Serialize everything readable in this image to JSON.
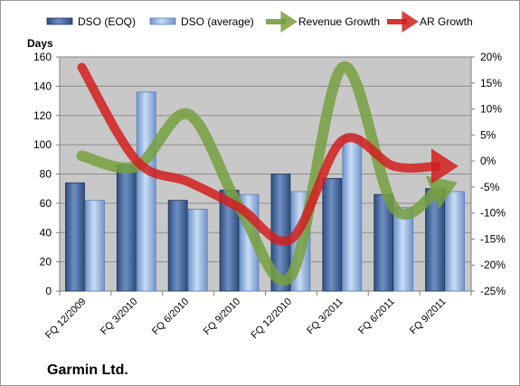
{
  "chart_data": {
    "type": "bar",
    "categories": [
      "FQ 12/2009",
      "FQ 3/2010",
      "FQ 6/2010",
      "FQ 9/2010",
      "FQ 12/2010",
      "FQ 3/2011",
      "FQ 6/2011",
      "FQ 9/2011"
    ],
    "series": [
      {
        "name": "DSO (EOQ)",
        "type": "bar",
        "axis": "left",
        "values": [
          74,
          86,
          62,
          69,
          80,
          77,
          66,
          70
        ],
        "color": "#3b5a8c"
      },
      {
        "name": "DSO (average)",
        "type": "bar",
        "axis": "left",
        "values": [
          62,
          136,
          56,
          66,
          68,
          106,
          57,
          68
        ],
        "color": "#8eb3e3"
      },
      {
        "name": "Revenue Growth",
        "type": "line",
        "axis": "right",
        "unit": "%",
        "values": [
          1,
          -1,
          9,
          -9,
          -22,
          18,
          -9,
          -5
        ],
        "color": "#77a03f"
      },
      {
        "name": "AR Growth",
        "type": "line",
        "axis": "right",
        "unit": "%",
        "values": [
          18,
          0,
          -4,
          -9,
          -15,
          4,
          -1,
          -1
        ],
        "color": "#d21e1e"
      }
    ],
    "ylabel": "Days",
    "ylim": [
      0,
      160
    ],
    "yticks": [
      "0",
      "20",
      "40",
      "60",
      "80",
      "100",
      "120",
      "140",
      "160"
    ],
    "y2lim": [
      -25,
      20
    ],
    "y2ticks": [
      "-25%",
      "-20%",
      "-15%",
      "-10%",
      "-5%",
      "0%",
      "5%",
      "10%",
      "15%",
      "20%"
    ],
    "legend_position": "top",
    "grid": true,
    "plot_background": "#c8c8c8",
    "footer": "Garmin Ltd."
  }
}
